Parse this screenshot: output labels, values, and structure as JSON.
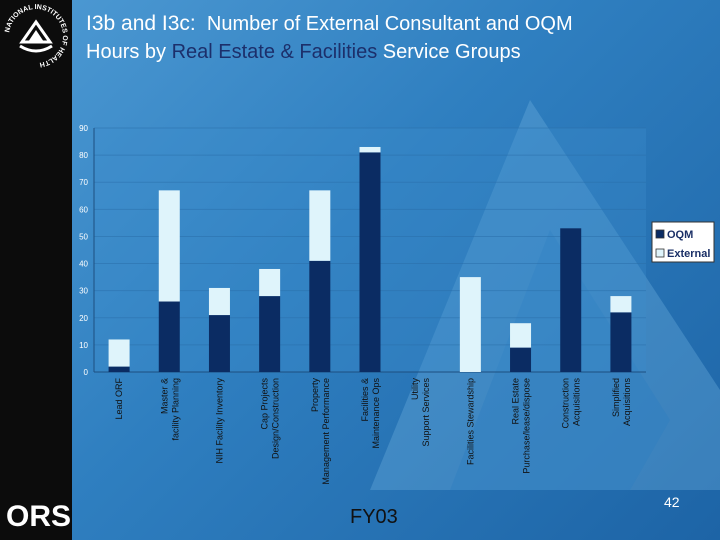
{
  "slide": {
    "title_lead": "I3b and I3c:",
    "title_mid": "Number of External Consultant and OQM",
    "title_line2_a": "Hours by ",
    "title_line2_accent": "Real Estate & Facilities",
    "title_line2_b": " Service Groups",
    "footer_label": "FY03",
    "page_number": "42",
    "org_logo_text": "ORS",
    "nih_logo_text": "NATIONAL INSTITUTES OF HEALTH"
  },
  "colors": {
    "oqm": "#0b2c63",
    "external": "#dff4fb",
    "plot_bg": "#3d8ccc"
  },
  "chart_data": {
    "type": "bar",
    "stacked": true,
    "title": "",
    "xlabel": "",
    "ylabel": "",
    "ylim": [
      0,
      90
    ],
    "yticks": [
      0,
      10,
      20,
      30,
      40,
      50,
      60,
      70,
      80,
      90
    ],
    "categories": [
      "Lead ORF",
      "Master & facility Planning",
      "NIH Facility Inventory",
      "Design/Construction Cap Projects",
      "Property Management Performance",
      "Facilities Maintenance & Ops",
      "Utility Support Services",
      "Facilities Stewardship",
      "Purchase/lease/dispose Real Estate",
      "Construction Acquisitions",
      "Simplified Acquisitions"
    ],
    "series": [
      {
        "name": "OQM",
        "values": [
          2,
          26,
          21,
          28,
          41,
          81,
          0,
          0,
          9,
          53,
          22
        ]
      },
      {
        "name": "External",
        "values": [
          10,
          41,
          10,
          10,
          26,
          2,
          0,
          35,
          9,
          0,
          6
        ]
      }
    ],
    "legend": [
      "OQM",
      "External"
    ],
    "legend_position": "right"
  }
}
